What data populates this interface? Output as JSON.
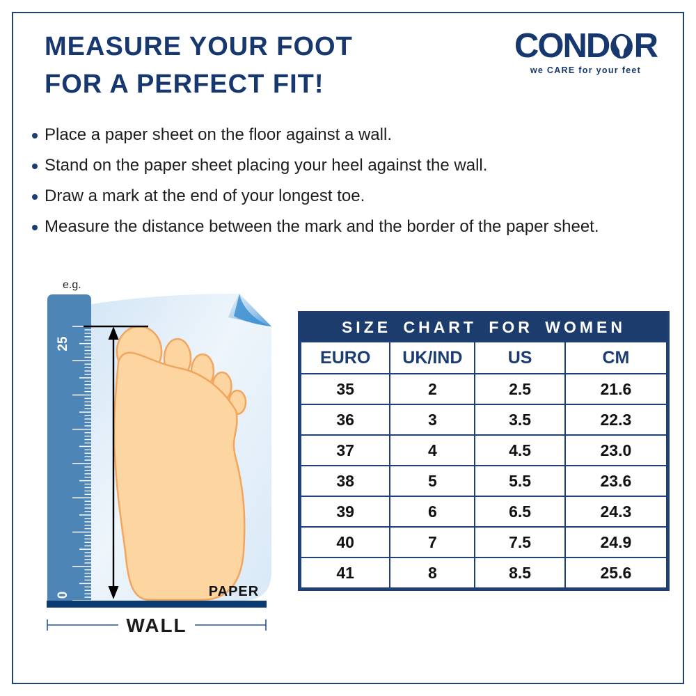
{
  "page": {
    "title_line1": "MEASURE YOUR FOOT",
    "title_line2": "FOR A PERFECT FIT!"
  },
  "logo": {
    "brand_part1": "COND",
    "brand_part2": "R",
    "o_icon": "shoe-last-in-o-icon",
    "tagline": "we CARE for your feet"
  },
  "instructions": [
    "Place a paper sheet on the floor against a wall.",
    "Stand on the paper sheet placing your heel against the wall.",
    "Draw a mark at the end of your longest toe.",
    "Measure the distance between the mark and the border of the paper sheet."
  ],
  "diagram": {
    "example_label": "e.g.",
    "ruler_max_label": "25",
    "ruler_min_label": "0",
    "paper_label": "PAPER",
    "wall_label": "WALL"
  },
  "size_chart": {
    "title": "SIZE CHART FOR WOMEN",
    "columns": [
      "EURO",
      "UK/IND",
      "US",
      "CM"
    ],
    "rows": [
      [
        "35",
        "2",
        "2.5",
        "21.6"
      ],
      [
        "36",
        "3",
        "3.5",
        "22.3"
      ],
      [
        "37",
        "4",
        "4.5",
        "23.0"
      ],
      [
        "38",
        "5",
        "5.5",
        "23.6"
      ],
      [
        "39",
        "6",
        "6.5",
        "24.3"
      ],
      [
        "40",
        "7",
        "7.5",
        "24.9"
      ],
      [
        "41",
        "8",
        "8.5",
        "25.6"
      ]
    ]
  },
  "colors": {
    "navy": "#17376f",
    "table_border": "#1e4077",
    "table_header_bg": "#1c3c6e",
    "ruler_blue": "#4d85b6",
    "wall_navy": "#0c3b72",
    "foot_fill": "#fcd5a0",
    "foot_stroke": "#f2a55e",
    "text_dark": "#1d1d1b"
  }
}
